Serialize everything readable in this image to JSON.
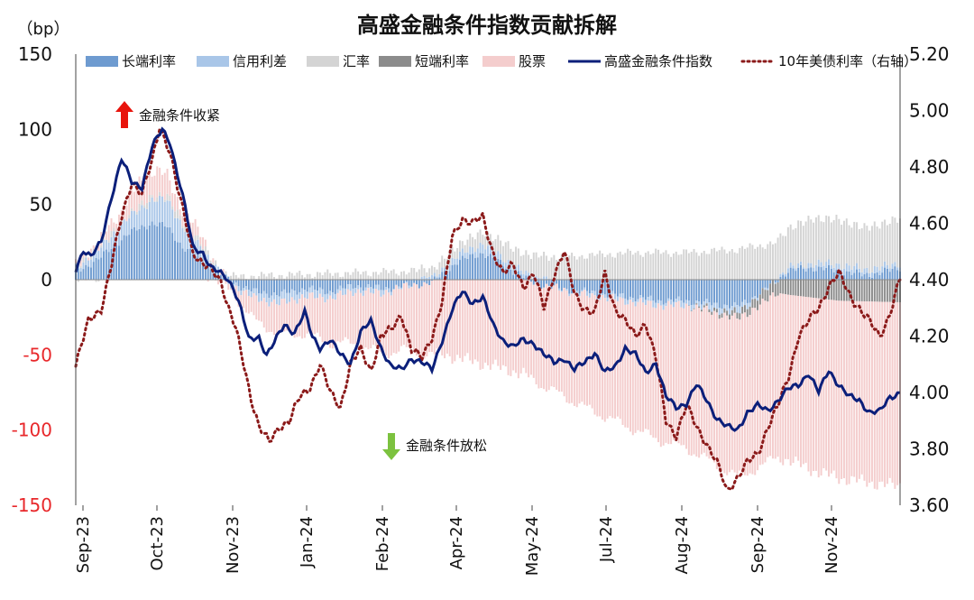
{
  "chart_data": {
    "type": "bar+line",
    "title": "高盛金融条件指数贡献拆解",
    "left_axis_unit": "（bp）",
    "left_axis": {
      "ticks": [
        150,
        100,
        50,
        0,
        -50,
        -100,
        -150
      ],
      "ylim": [
        -150,
        150
      ]
    },
    "right_axis": {
      "ticks": [
        "5.20",
        "5.00",
        "4.80",
        "4.60",
        "4.40",
        "4.20",
        "4.00",
        "3.80",
        "3.60"
      ],
      "ylim": [
        3.6,
        5.2
      ]
    },
    "x_ticks": [
      "Sep-23",
      "Oct-23",
      "Nov-23",
      "Jan-24",
      "Feb-24",
      "Apr-24",
      "May-24",
      "Jul-24",
      "Aug-24",
      "Sep-24",
      "Nov-24"
    ],
    "legend": [
      {
        "label": "长端利率",
        "kind": "bar",
        "color": "#6e9bd0"
      },
      {
        "label": "信用利差",
        "kind": "bar",
        "color": "#a9c6e8"
      },
      {
        "label": "汇率",
        "kind": "bar",
        "color": "#d4d4d4"
      },
      {
        "label": "短端利率",
        "kind": "bar",
        "color": "#8c8c8c"
      },
      {
        "label": "股票",
        "kind": "bar",
        "color": "#f4cdcd"
      },
      {
        "label": "高盛金融条件指数",
        "kind": "line",
        "color": "#0b1f7a"
      },
      {
        "label": "10年美债利率（右轴）",
        "kind": "dotted",
        "color": "#8b1a1a"
      }
    ],
    "annotations": {
      "tighten": "金融条件收紧",
      "loosen": "金融条件放松"
    },
    "fci_keypoints": [
      [
        0,
        7
      ],
      [
        3,
        20
      ],
      [
        6,
        15
      ],
      [
        10,
        25
      ],
      [
        14,
        55
      ],
      [
        18,
        80
      ],
      [
        22,
        65
      ],
      [
        26,
        62
      ],
      [
        30,
        88
      ],
      [
        34,
        100
      ],
      [
        37,
        92
      ],
      [
        40,
        70
      ],
      [
        43,
        48
      ],
      [
        46,
        22
      ],
      [
        50,
        18
      ],
      [
        53,
        8
      ],
      [
        56,
        5
      ],
      [
        59,
        2
      ],
      [
        62,
        -5
      ],
      [
        65,
        -20
      ],
      [
        68,
        -40
      ],
      [
        72,
        -38
      ],
      [
        75,
        -50
      ],
      [
        78,
        -42
      ],
      [
        82,
        -30
      ],
      [
        86,
        -35
      ],
      [
        90,
        -22
      ],
      [
        93,
        -38
      ],
      [
        96,
        -45
      ],
      [
        100,
        -40
      ],
      [
        104,
        -50
      ],
      [
        108,
        -55
      ],
      [
        112,
        -35
      ],
      [
        116,
        -28
      ],
      [
        120,
        -45
      ],
      [
        124,
        -58
      ],
      [
        128,
        -60
      ],
      [
        132,
        -52
      ],
      [
        136,
        -55
      ],
      [
        140,
        -60
      ],
      [
        144,
        -40
      ],
      [
        148,
        -20
      ],
      [
        152,
        -8
      ],
      [
        156,
        -15
      ],
      [
        160,
        -12
      ],
      [
        164,
        -30
      ],
      [
        168,
        -40
      ],
      [
        172,
        -45
      ],
      [
        176,
        -40
      ],
      [
        180,
        -42
      ],
      [
        184,
        -50
      ],
      [
        188,
        -55
      ],
      [
        192,
        -52
      ],
      [
        196,
        -60
      ],
      [
        200,
        -55
      ],
      [
        204,
        -48
      ],
      [
        208,
        -62
      ],
      [
        212,
        -58
      ],
      [
        216,
        -45
      ],
      [
        220,
        -50
      ],
      [
        224,
        -62
      ],
      [
        228,
        -55
      ],
      [
        232,
        -78
      ],
      [
        236,
        -85
      ],
      [
        240,
        -82
      ],
      [
        244,
        -70
      ],
      [
        248,
        -80
      ],
      [
        252,
        -92
      ],
      [
        256,
        -98
      ],
      [
        260,
        -100
      ],
      [
        264,
        -88
      ],
      [
        268,
        -84
      ],
      [
        272,
        -87
      ],
      [
        276,
        -80
      ],
      [
        280,
        -73
      ],
      [
        284,
        -70
      ],
      [
        288,
        -62
      ],
      [
        292,
        -75
      ],
      [
        296,
        -60
      ],
      [
        300,
        -70
      ],
      [
        304,
        -78
      ],
      [
        308,
        -80
      ],
      [
        312,
        -88
      ],
      [
        316,
        -88
      ],
      [
        320,
        -78
      ],
      [
        324,
        -75
      ]
    ],
    "ust10y_keypoints": [
      [
        0,
        4.1
      ],
      [
        5,
        4.25
      ],
      [
        10,
        4.3
      ],
      [
        14,
        4.45
      ],
      [
        18,
        4.62
      ],
      [
        22,
        4.75
      ],
      [
        26,
        4.7
      ],
      [
        30,
        4.82
      ],
      [
        33,
        4.95
      ],
      [
        37,
        4.85
      ],
      [
        40,
        4.72
      ],
      [
        43,
        4.62
      ],
      [
        46,
        4.5
      ],
      [
        50,
        4.45
      ],
      [
        54,
        4.43
      ],
      [
        57,
        4.4
      ],
      [
        60,
        4.3
      ],
      [
        63,
        4.22
      ],
      [
        66,
        4.1
      ],
      [
        69,
        3.98
      ],
      [
        72,
        3.88
      ],
      [
        76,
        3.82
      ],
      [
        80,
        3.88
      ],
      [
        84,
        3.9
      ],
      [
        88,
        3.98
      ],
      [
        92,
        4.02
      ],
      [
        96,
        4.1
      ],
      [
        100,
        4.0
      ],
      [
        104,
        3.95
      ],
      [
        108,
        4.1
      ],
      [
        112,
        4.15
      ],
      [
        116,
        4.08
      ],
      [
        120,
        4.2
      ],
      [
        124,
        4.22
      ],
      [
        128,
        4.28
      ],
      [
        132,
        4.15
      ],
      [
        136,
        4.12
      ],
      [
        140,
        4.2
      ],
      [
        144,
        4.32
      ],
      [
        148,
        4.55
      ],
      [
        152,
        4.62
      ],
      [
        156,
        4.6
      ],
      [
        160,
        4.62
      ],
      [
        164,
        4.5
      ],
      [
        168,
        4.42
      ],
      [
        172,
        4.45
      ],
      [
        176,
        4.38
      ],
      [
        180,
        4.42
      ],
      [
        184,
        4.3
      ],
      [
        188,
        4.42
      ],
      [
        192,
        4.5
      ],
      [
        196,
        4.35
      ],
      [
        200,
        4.3
      ],
      [
        204,
        4.28
      ],
      [
        208,
        4.42
      ],
      [
        212,
        4.3
      ],
      [
        216,
        4.25
      ],
      [
        220,
        4.2
      ],
      [
        224,
        4.25
      ],
      [
        228,
        4.12
      ],
      [
        232,
        3.9
      ],
      [
        236,
        3.85
      ],
      [
        240,
        3.95
      ],
      [
        244,
        3.88
      ],
      [
        248,
        3.82
      ],
      [
        252,
        3.75
      ],
      [
        256,
        3.65
      ],
      [
        260,
        3.7
      ],
      [
        264,
        3.75
      ],
      [
        268,
        3.78
      ],
      [
        272,
        3.88
      ],
      [
        276,
        3.95
      ],
      [
        280,
        4.05
      ],
      [
        284,
        4.2
      ],
      [
        288,
        4.25
      ],
      [
        292,
        4.3
      ],
      [
        296,
        4.38
      ],
      [
        300,
        4.42
      ],
      [
        304,
        4.35
      ],
      [
        308,
        4.3
      ],
      [
        312,
        4.25
      ],
      [
        316,
        4.2
      ],
      [
        320,
        4.28
      ],
      [
        324,
        4.4
      ]
    ],
    "stock_keypoints": [
      [
        0,
        3
      ],
      [
        10,
        5
      ],
      [
        18,
        8
      ],
      [
        25,
        15
      ],
      [
        32,
        18
      ],
      [
        38,
        10
      ],
      [
        44,
        8
      ],
      [
        50,
        5
      ],
      [
        56,
        0
      ],
      [
        62,
        -5
      ],
      [
        70,
        -15
      ],
      [
        80,
        -20
      ],
      [
        90,
        -25
      ],
      [
        100,
        -30
      ],
      [
        110,
        -35
      ],
      [
        120,
        -40
      ],
      [
        130,
        -42
      ],
      [
        140,
        -48
      ],
      [
        150,
        -52
      ],
      [
        160,
        -56
      ],
      [
        170,
        -60
      ],
      [
        180,
        -65
      ],
      [
        190,
        -70
      ],
      [
        200,
        -75
      ],
      [
        210,
        -80
      ],
      [
        220,
        -85
      ],
      [
        230,
        -90
      ],
      [
        240,
        -95
      ],
      [
        250,
        -100
      ],
      [
        260,
        -105
      ],
      [
        270,
        -108
      ],
      [
        280,
        -110
      ],
      [
        290,
        -115
      ],
      [
        300,
        -118
      ],
      [
        310,
        -120
      ],
      [
        320,
        -122
      ],
      [
        324,
        -122
      ]
    ],
    "long_rate_keypoints": [
      [
        0,
        5
      ],
      [
        10,
        15
      ],
      [
        20,
        30
      ],
      [
        30,
        38
      ],
      [
        36,
        35
      ],
      [
        42,
        22
      ],
      [
        50,
        12
      ],
      [
        56,
        4
      ],
      [
        62,
        -2
      ],
      [
        70,
        -8
      ],
      [
        80,
        -10
      ],
      [
        90,
        -6
      ],
      [
        100,
        -8
      ],
      [
        110,
        -4
      ],
      [
        120,
        -6
      ],
      [
        130,
        -4
      ],
      [
        140,
        -2
      ],
      [
        150,
        12
      ],
      [
        160,
        18
      ],
      [
        170,
        8
      ],
      [
        180,
        -2
      ],
      [
        190,
        -6
      ],
      [
        200,
        -8
      ],
      [
        210,
        -10
      ],
      [
        220,
        -12
      ],
      [
        230,
        -14
      ],
      [
        240,
        -14
      ],
      [
        250,
        -16
      ],
      [
        260,
        -18
      ],
      [
        270,
        -8
      ],
      [
        280,
        6
      ],
      [
        290,
        8
      ],
      [
        300,
        6
      ],
      [
        310,
        3
      ],
      [
        320,
        6
      ],
      [
        324,
        8
      ]
    ],
    "credit_keypoints": [
      [
        0,
        3
      ],
      [
        20,
        10
      ],
      [
        36,
        18
      ],
      [
        50,
        8
      ],
      [
        60,
        -2
      ],
      [
        80,
        -6
      ],
      [
        100,
        -4
      ],
      [
        120,
        -3
      ],
      [
        140,
        2
      ],
      [
        160,
        6
      ],
      [
        180,
        2
      ],
      [
        200,
        -2
      ],
      [
        220,
        -3
      ],
      [
        240,
        -3
      ],
      [
        260,
        -4
      ],
      [
        280,
        2
      ],
      [
        300,
        4
      ],
      [
        324,
        3
      ]
    ],
    "fx_keypoints": [
      [
        0,
        0
      ],
      [
        20,
        2
      ],
      [
        40,
        3
      ],
      [
        60,
        2
      ],
      [
        80,
        3
      ],
      [
        100,
        4
      ],
      [
        120,
        5
      ],
      [
        140,
        6
      ],
      [
        160,
        8
      ],
      [
        180,
        14
      ],
      [
        200,
        16
      ],
      [
        220,
        18
      ],
      [
        240,
        18
      ],
      [
        260,
        20
      ],
      [
        280,
        26
      ],
      [
        290,
        30
      ],
      [
        300,
        30
      ],
      [
        310,
        28
      ],
      [
        324,
        30
      ]
    ],
    "short_rate_keypoints": [
      [
        0,
        0
      ],
      [
        240,
        0
      ],
      [
        260,
        -4
      ],
      [
        280,
        -10
      ],
      [
        300,
        -14
      ],
      [
        324,
        -15
      ]
    ]
  }
}
